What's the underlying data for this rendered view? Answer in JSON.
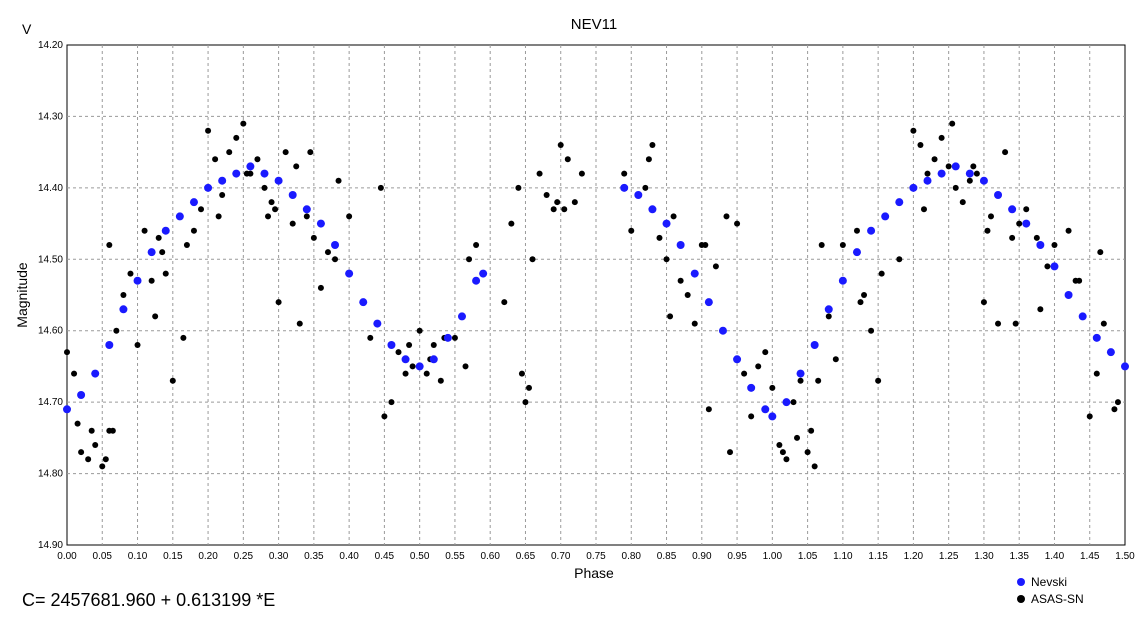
{
  "chart_data": {
    "type": "scatter",
    "title": "NEV11",
    "xlabel": "Phase",
    "ylabel": "Magnitude",
    "y_unit_label": "V",
    "xlim": [
      0.0,
      1.5
    ],
    "ylim": [
      14.2,
      14.9
    ],
    "y_inverted": true,
    "grid": true,
    "legend_position": "bottom-right",
    "x_ticks": [
      "0.00",
      "0.05",
      "0.10",
      "0.15",
      "0.20",
      "0.25",
      "0.30",
      "0.35",
      "0.40",
      "0.45",
      "0.50",
      "0.55",
      "0.60",
      "0.65",
      "0.70",
      "0.75",
      "0.80",
      "0.85",
      "0.90",
      "0.95",
      "1.00",
      "1.05",
      "1.10",
      "1.15",
      "1.20",
      "1.25",
      "1.30",
      "1.35",
      "1.40",
      "1.45",
      "1.50"
    ],
    "y_ticks": [
      "14.20",
      "14.30",
      "14.40",
      "14.50",
      "14.60",
      "14.70",
      "14.80",
      "14.90"
    ],
    "annotation": "C= 2457681.960 + 0.613199 *E",
    "series": [
      {
        "name": "Nevski",
        "color": "#1a1aff",
        "x": [
          0.0,
          0.02,
          0.04,
          0.06,
          0.08,
          0.1,
          0.12,
          0.14,
          0.16,
          0.18,
          0.2,
          0.22,
          0.24,
          0.26,
          0.28,
          0.3,
          0.32,
          0.34,
          0.36,
          0.38,
          0.4,
          0.42,
          0.44,
          0.46,
          0.48,
          0.5,
          0.52,
          0.54,
          0.56,
          0.58,
          0.59,
          0.79,
          0.81,
          0.83,
          0.85,
          0.87,
          0.89,
          0.91,
          0.93,
          0.95,
          0.97,
          0.99,
          1.0,
          1.02,
          1.04,
          1.06,
          1.08,
          1.1,
          1.12,
          1.14,
          1.16,
          1.18,
          1.2,
          1.22,
          1.24,
          1.26,
          1.28,
          1.3,
          1.32,
          1.34,
          1.36,
          1.38,
          1.4,
          1.42,
          1.44,
          1.46,
          1.48,
          1.5
        ],
        "y": [
          14.71,
          14.69,
          14.66,
          14.62,
          14.57,
          14.53,
          14.49,
          14.46,
          14.44,
          14.42,
          14.4,
          14.39,
          14.38,
          14.37,
          14.38,
          14.39,
          14.41,
          14.43,
          14.45,
          14.48,
          14.52,
          14.56,
          14.59,
          14.62,
          14.64,
          14.65,
          14.64,
          14.61,
          14.58,
          14.53,
          14.52,
          14.4,
          14.41,
          14.43,
          14.45,
          14.48,
          14.52,
          14.56,
          14.6,
          14.64,
          14.68,
          14.71,
          14.72,
          14.7,
          14.66,
          14.62,
          14.57,
          14.53,
          14.49,
          14.46,
          14.44,
          14.42,
          14.4,
          14.39,
          14.38,
          14.37,
          14.38,
          14.39,
          14.41,
          14.43,
          14.45,
          14.48,
          14.51,
          14.55,
          14.58,
          14.61,
          14.63,
          14.65
        ]
      },
      {
        "name": "ASAS-SN",
        "color": "#000000",
        "x": [
          0.0,
          0.01,
          0.02,
          0.03,
          0.04,
          0.05,
          0.06,
          0.06,
          0.07,
          0.08,
          0.09,
          0.1,
          0.11,
          0.12,
          0.13,
          0.14,
          0.15,
          0.16,
          0.17,
          0.18,
          0.19,
          0.2,
          0.21,
          0.22,
          0.23,
          0.24,
          0.25,
          0.26,
          0.27,
          0.28,
          0.29,
          0.3,
          0.31,
          0.32,
          0.33,
          0.34,
          0.35,
          0.36,
          0.37,
          0.38,
          0.4,
          0.42,
          0.43,
          0.45,
          0.46,
          0.47,
          0.48,
          0.49,
          0.5,
          0.51,
          0.52,
          0.53,
          0.55,
          0.56,
          0.57,
          0.58,
          0.62,
          0.63,
          0.64,
          0.65,
          0.66,
          0.67,
          0.68,
          0.69,
          0.7,
          0.71,
          0.72,
          0.73,
          0.79,
          0.8,
          0.82,
          0.83,
          0.84,
          0.85,
          0.86,
          0.87,
          0.88,
          0.89,
          0.9,
          0.91,
          0.92,
          0.94,
          0.95,
          0.96,
          0.97,
          0.98,
          0.99,
          1.0,
          1.01,
          1.02,
          1.03,
          1.04,
          1.05,
          1.06,
          1.07,
          1.08,
          1.09,
          1.1,
          1.12,
          1.13,
          1.14,
          1.15,
          1.16,
          1.18,
          1.2,
          1.21,
          1.22,
          1.23,
          1.24,
          1.25,
          1.26,
          1.27,
          1.28,
          1.29,
          1.3,
          1.31,
          1.32,
          1.33,
          1.34,
          1.35,
          1.36,
          1.38,
          1.39,
          1.4,
          1.42,
          1.43,
          1.45,
          1.46,
          1.47,
          1.48,
          1.49,
          0.015,
          0.035,
          0.055,
          0.065,
          0.125,
          0.135,
          0.165,
          0.215,
          0.255,
          0.285,
          0.295,
          0.325,
          0.345,
          0.385,
          0.445,
          0.485,
          0.515,
          0.535,
          0.565,
          0.645,
          0.655,
          0.695,
          0.705,
          0.825,
          0.855,
          0.905,
          0.935,
          1.015,
          1.035,
          1.055,
          1.065,
          1.125,
          1.155,
          1.215,
          1.255,
          1.285,
          1.305,
          1.345,
          1.375,
          1.435,
          1.465,
          1.485
        ],
        "y": [
          14.63,
          14.66,
          14.77,
          14.78,
          14.76,
          14.79,
          14.74,
          14.48,
          14.6,
          14.55,
          14.52,
          14.62,
          14.46,
          14.53,
          14.47,
          14.52,
          14.67,
          14.44,
          14.48,
          14.46,
          14.43,
          14.32,
          14.36,
          14.41,
          14.35,
          14.33,
          14.31,
          14.38,
          14.36,
          14.4,
          14.42,
          14.56,
          14.35,
          14.45,
          14.59,
          14.44,
          14.47,
          14.54,
          14.49,
          14.5,
          14.44,
          14.56,
          14.61,
          14.72,
          14.7,
          14.63,
          14.66,
          14.65,
          14.6,
          14.66,
          14.62,
          14.67,
          14.61,
          14.58,
          14.5,
          14.48,
          14.56,
          14.45,
          14.4,
          14.7,
          14.5,
          14.38,
          14.41,
          14.43,
          14.34,
          14.36,
          14.42,
          14.38,
          14.38,
          14.46,
          14.4,
          14.34,
          14.47,
          14.5,
          14.44,
          14.53,
          14.55,
          14.59,
          14.48,
          14.71,
          14.51,
          14.77,
          14.45,
          14.66,
          14.72,
          14.65,
          14.63,
          14.68,
          14.76,
          14.78,
          14.7,
          14.67,
          14.77,
          14.79,
          14.48,
          14.58,
          14.64,
          14.48,
          14.46,
          14.55,
          14.6,
          14.67,
          14.44,
          14.5,
          14.32,
          14.34,
          14.38,
          14.36,
          14.33,
          14.37,
          14.4,
          14.42,
          14.39,
          14.38,
          14.56,
          14.44,
          14.59,
          14.35,
          14.47,
          14.45,
          14.43,
          14.57,
          14.51,
          14.48,
          14.46,
          14.53,
          14.72,
          14.66,
          14.59,
          14.63,
          14.7,
          14.73,
          14.74,
          14.78,
          14.74,
          14.58,
          14.49,
          14.61,
          14.44,
          14.38,
          14.44,
          14.43,
          14.37,
          14.35,
          14.39,
          14.4,
          14.62,
          14.64,
          14.61,
          14.65,
          14.66,
          14.68,
          14.42,
          14.43,
          14.36,
          14.58,
          14.48,
          14.44,
          14.77,
          14.75,
          14.74,
          14.67,
          14.56,
          14.52,
          14.43,
          14.31,
          14.37,
          14.46,
          14.59,
          14.47,
          14.53,
          14.49,
          14.71
        ]
      }
    ]
  }
}
